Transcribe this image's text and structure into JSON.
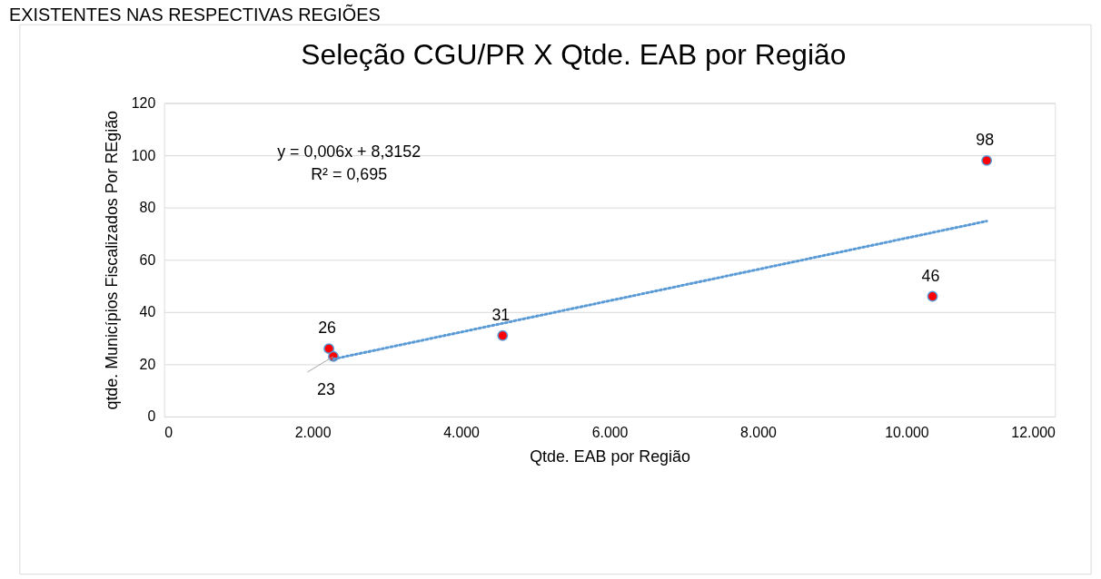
{
  "chart_data": {
    "type": "scatter",
    "title": "Seleção CGU/PR X Qtde. EAB por Região",
    "xlabel": "Qtde. EAB por Região",
    "ylabel": "qtde. Municípios Fiscalizados Por REgião",
    "x": [
      2220,
      2280,
      4560,
      10350,
      11080
    ],
    "series": [
      {
        "color": "#ff0000",
        "values": [
          26,
          23,
          31,
          46,
          98
        ],
        "value_labels": [
          "26",
          "23",
          "31",
          "46",
          "98"
        ]
      },
      {
        "type": "line",
        "color": "#5b9bd5",
        "line_style": "dotted",
        "marker": "none",
        "x": [
          2280,
          11080
        ],
        "values": [
          22.0,
          74.8
        ]
      }
    ],
    "marker": "circle",
    "xlim": [
      0,
      12000
    ],
    "xticks": [
      0,
      {
        "value": 2000,
        "label": "2.000"
      },
      {
        "value": 4000,
        "label": "4.000"
      },
      {
        "value": 6000,
        "label": "6.000"
      },
      {
        "value": 8000,
        "label": "8.000"
      },
      {
        "value": 10000,
        "label": "10.000"
      },
      {
        "value": 12000,
        "label": "12.000"
      }
    ],
    "ylim": [
      0,
      120
    ],
    "yticks": [
      0,
      20,
      40,
      60,
      80,
      100,
      120
    ],
    "grid": "y",
    "annotations": [
      "EXISTENTES NAS RESPECTIVAS REGIÕES",
      "y = 0,006x + 8,3152",
      "R² = 0,695"
    ]
  }
}
